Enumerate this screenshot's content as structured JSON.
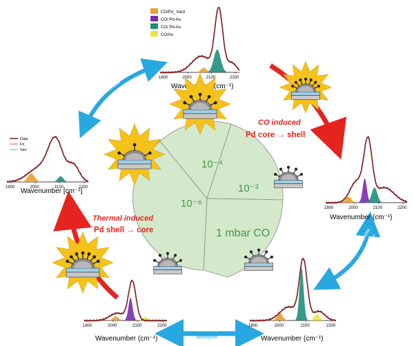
{
  "legend": [
    {
      "label": "CO/Pd_ hard",
      "color": "#e8a030"
    },
    {
      "label": "CO/ Pd-Au",
      "color": "#7a2bb0"
    },
    {
      "label": "CO/ Pd-Au",
      "color": "#1f8f7a"
    },
    {
      "label": "CO/Au",
      "color": "#f0e040"
    }
  ],
  "legend_left": [
    {
      "label": "Data",
      "color": "#7a1c1c"
    },
    {
      "label": "Fit",
      "color": "#e05050"
    },
    {
      "label": "Sim",
      "color": "#6aa8d8"
    }
  ],
  "axis": {
    "wavenumber": "Wavenumber (cm⁻¹)",
    "wavenumber_bracket": "Wavenumber [cm⁻¹]"
  },
  "spectra": {
    "top": {
      "ticks": [
        "1800",
        "2000",
        "2100",
        "2200"
      ]
    },
    "left": {
      "ticks": [
        "1900",
        "2000",
        "2100",
        "2200"
      ]
    },
    "right": {
      "ticks": [
        "1800",
        "2000",
        "2100",
        "2200"
      ]
    },
    "bottom_left": {
      "ticks": [
        "1800",
        "2000",
        "2100",
        "2200"
      ]
    },
    "bottom_right": {
      "ticks": [
        "1800",
        "2000",
        "2100",
        "2200"
      ]
    }
  },
  "arrows": {
    "top_left": [
      "Reversible",
      "adsorption"
    ],
    "right": [
      "Reversible",
      "adsorption"
    ],
    "bottom": [
      "Reversible",
      "adsorption"
    ]
  },
  "labels": {
    "co_induced_line1": "CO induced",
    "co_induced_line2": "Pd core → shell",
    "thermal_line1": "Thermal induced",
    "thermal_line2": "Pd shell → core"
  },
  "pressure_sectors": [
    {
      "label": "10⁻⁴"
    },
    {
      "label": "10⁻³"
    },
    {
      "label": "10⁻⁶"
    },
    {
      "label": "1 mbar CO"
    }
  ],
  "colors": {
    "red_arrow": "#e52420",
    "blue_arrow": "#28a8e0",
    "sector_fill": "#d4e8cc",
    "sector_text": "#3e9a3e",
    "data_line": "#7a1c1c",
    "fit_line": "#e05050",
    "burst": "#f5c21a",
    "substrate": "#9ecfe8"
  }
}
